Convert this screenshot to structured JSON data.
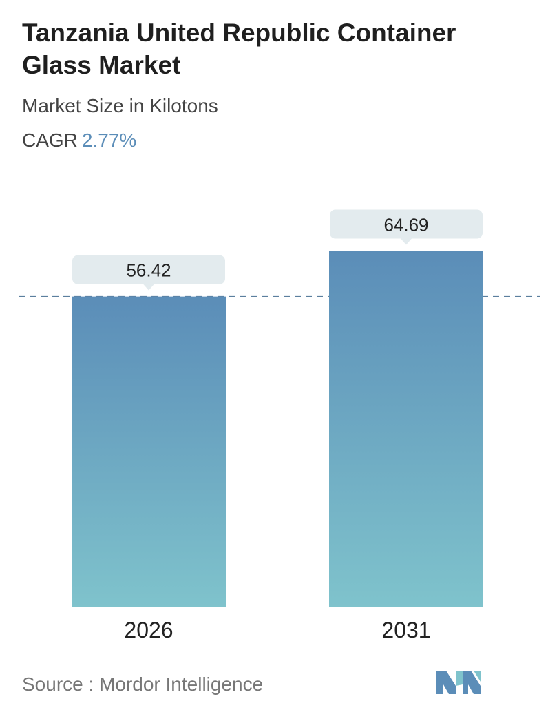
{
  "title": "Tanzania United Republic Container Glass Market",
  "subtitle": "Market Size in Kilotons",
  "cagr": {
    "label": "CAGR",
    "value": "2.77%"
  },
  "source": {
    "label": "Source :",
    "name": "Mordor Intelligence"
  },
  "chart_data": {
    "type": "bar",
    "categories": [
      "2026",
      "2031"
    ],
    "values": [
      56.42,
      64.69
    ],
    "data_labels": [
      "56.42",
      "64.69"
    ],
    "title": "Tanzania United Republic Container Glass Market",
    "subtitle": "Market Size in Kilotons",
    "xlabel": "",
    "ylabel": "",
    "grid": false,
    "reference_line": 56.42,
    "colors": {
      "bar_top": "#5b8db8",
      "bar_bottom": "#7fc3cc",
      "label_box": "#e3ebee",
      "reference_line": "#5b7f9e"
    }
  },
  "logo": {
    "icon": "mordor-intelligence-logo",
    "colors": [
      "#5b8db8",
      "#7fc3cc"
    ]
  }
}
